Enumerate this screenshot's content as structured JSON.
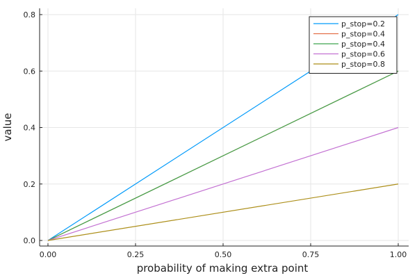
{
  "chart_data": {
    "type": "line",
    "title": "",
    "xlabel": "probability of making extra point",
    "ylabel": "value",
    "xlim": [
      0,
      1
    ],
    "ylim": [
      0,
      0.8
    ],
    "xticks": [
      0.0,
      0.25,
      0.5,
      0.75,
      1.0
    ],
    "xtick_labels": [
      "0.00",
      "0.25",
      "0.50",
      "0.75",
      "1.00"
    ],
    "yticks": [
      0.0,
      0.2,
      0.4,
      0.6,
      0.8
    ],
    "ytick_labels": [
      "0.0",
      "0.2",
      "0.4",
      "0.6",
      "0.8"
    ],
    "grid": true,
    "legend_position": "top-right",
    "series": [
      {
        "name": "p_stop=0.2",
        "color": "#009AFA",
        "x": [
          0,
          1
        ],
        "y": [
          0,
          0.8
        ]
      },
      {
        "name": "p_stop=0.4",
        "color": "#E36F47",
        "x": [
          0,
          1
        ],
        "y": [
          0,
          0.6
        ]
      },
      {
        "name": "p_stop=0.4",
        "color": "#3EA44E",
        "x": [
          0,
          1
        ],
        "y": [
          0,
          0.6
        ]
      },
      {
        "name": "p_stop=0.6",
        "color": "#C371D2",
        "x": [
          0,
          1
        ],
        "y": [
          0,
          0.4
        ]
      },
      {
        "name": "p_stop=0.8",
        "color": "#AC8E18",
        "x": [
          0,
          1
        ],
        "y": [
          0,
          0.2
        ]
      }
    ]
  }
}
